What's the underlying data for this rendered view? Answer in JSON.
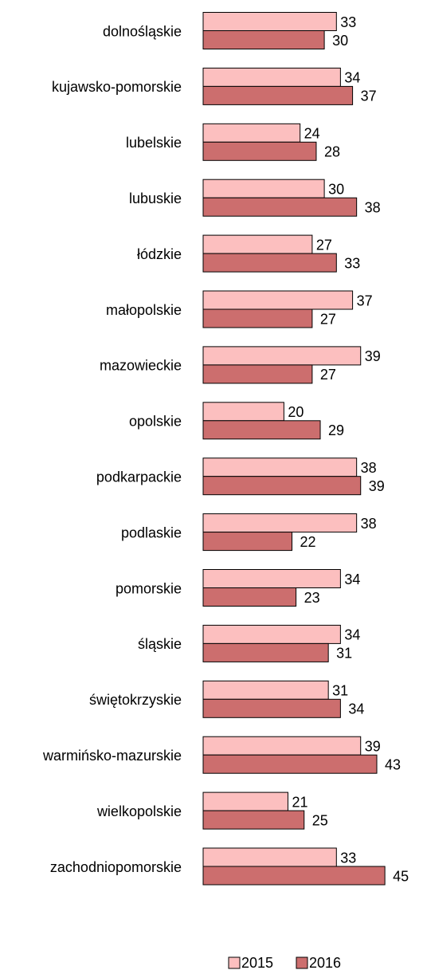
{
  "chart_data": {
    "type": "bar",
    "orientation": "horizontal",
    "categories": [
      "dolnośląskie",
      "kujawsko-pomorskie",
      "lubelskie",
      "lubuskie",
      "łódzkie",
      "małopolskie",
      "mazowieckie",
      "opolskie",
      "podkarpackie",
      "podlaskie",
      "pomorskie",
      "śląskie",
      "świętokrzyskie",
      "warmińsko-mazurskie",
      "wielkopolskie",
      "zachodniopomorskie"
    ],
    "series": [
      {
        "name": "2015",
        "color": "#fcbfbf",
        "values": [
          33,
          34,
          24,
          30,
          27,
          37,
          39,
          20,
          38,
          38,
          34,
          34,
          31,
          39,
          21,
          33
        ]
      },
      {
        "name": "2016",
        "color": "#cc6e6e",
        "values": [
          30,
          37,
          28,
          38,
          33,
          27,
          27,
          29,
          39,
          22,
          23,
          31,
          34,
          43,
          25,
          45
        ]
      }
    ],
    "legend": "bottom"
  }
}
